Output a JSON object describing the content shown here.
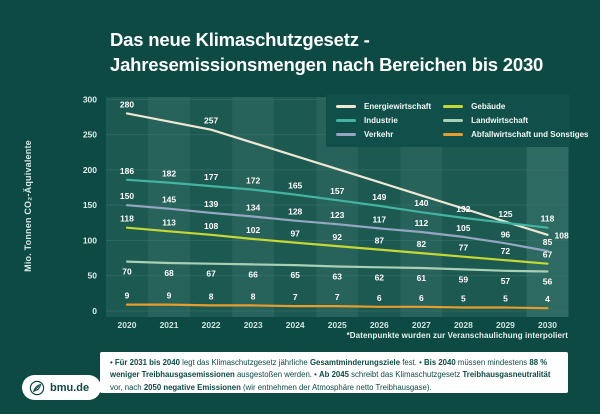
{
  "page": {
    "background": "#0d4a44"
  },
  "title": {
    "line1": "Das neue Klimaschutzgesetz -",
    "line2": "Jahresemissionsmengen nach Bereichen bis 2030"
  },
  "chart_data": {
    "type": "line",
    "x": [
      "2020",
      "2021",
      "2022",
      "2023",
      "2024",
      "2025",
      "2026",
      "2027",
      "2028",
      "2029",
      "2030"
    ],
    "ylabel": "Mio. Tonnen CO₂-Äquivalente",
    "yticks": [
      0,
      50,
      100,
      150,
      200,
      250,
      300
    ],
    "ylim": [
      0,
      300
    ],
    "grid": "horizontal",
    "legend_position": "top-right",
    "footnote": "*Datenpunkte wurden zur Veranschaulichung interpoliert",
    "series": [
      {
        "name": "Energiewirtschaft",
        "color": "#eee7d4",
        "values": [
          280,
          268.5,
          257,
          238.4,
          219.8,
          201.1,
          182.5,
          163.9,
          145.3,
          126.6,
          108
        ],
        "point_labels": [
          "280",
          null,
          "257",
          null,
          null,
          null,
          null,
          null,
          null,
          null,
          "108"
        ],
        "label_positions": {
          "10": "right"
        }
      },
      {
        "name": "Industrie",
        "color": "#43b3a2",
        "values": [
          186,
          182,
          177,
          172,
          165,
          157,
          149,
          140,
          132,
          125,
          118
        ],
        "point_labels": [
          "186",
          "182",
          "177",
          "172",
          "165",
          "157",
          "149",
          "140",
          "132",
          "125",
          "118"
        ]
      },
      {
        "name": "Verkehr",
        "color": "#95a5c4",
        "values": [
          150,
          145,
          139,
          134,
          128,
          123,
          117,
          112,
          105,
          96,
          85
        ],
        "point_labels": [
          "150",
          "145",
          "139",
          "134",
          "128",
          "123",
          "117",
          "112",
          "105",
          "96",
          "85"
        ]
      },
      {
        "name": "Gebäude",
        "color": "#c6d832",
        "values": [
          118,
          113,
          108,
          102,
          97,
          92,
          87,
          82,
          77,
          72,
          67
        ],
        "point_labels": [
          "118",
          "113",
          "108",
          "102",
          "97",
          "92",
          "87",
          "82",
          "77",
          "72",
          "67"
        ]
      },
      {
        "name": "Landwirtschaft",
        "color": "#a9cfb5",
        "values": [
          70,
          68,
          67,
          66,
          65,
          63,
          62,
          61,
          59,
          57,
          56
        ],
        "point_labels": [
          "70",
          "68",
          "67",
          "66",
          "65",
          "63",
          "62",
          "61",
          "59",
          "57",
          "56"
        ],
        "label_side": "below"
      },
      {
        "name": "Abfallwirtschaft und Sonstiges",
        "color": "#e69d2d",
        "values": [
          9,
          9,
          8,
          8,
          7,
          7,
          6,
          6,
          5,
          5,
          4
        ],
        "point_labels": [
          "9",
          "9",
          "8",
          "8",
          "7",
          "7",
          "6",
          "6",
          "5",
          "5",
          "4"
        ]
      }
    ],
    "legend_columns": [
      [
        0,
        1,
        2
      ],
      [
        3,
        4,
        5
      ]
    ]
  },
  "colors": {
    "band_dark": "#1c5951",
    "band_light": "#27635b",
    "band_highlight": "#2d6a61",
    "gridline": "#3a746b",
    "ytick_text": "#ddeeea",
    "xtick_text": "#cfe4df",
    "point_label_text": "#ffffff"
  },
  "infobox": {
    "segments": [
      {
        "text": "• ",
        "bold": false
      },
      {
        "text": "Für 2031 bis 2040",
        "bold": true
      },
      {
        "text": " legt das Klimaschutzgesetz jährliche ",
        "bold": false
      },
      {
        "text": "Gesamtminderungsziele",
        "bold": true
      },
      {
        "text": " fest. • ",
        "bold": false
      },
      {
        "text": "Bis 2040",
        "bold": true
      },
      {
        "text": " müssen mindestens ",
        "bold": false
      },
      {
        "text": "88 % weniger Treibhausgasemissionen",
        "bold": true
      },
      {
        "text": " ausgestoßen werden. • ",
        "bold": false
      },
      {
        "text": "Ab 2045",
        "bold": true
      },
      {
        "text": " schreibt das Klimaschutzgesetz ",
        "bold": false
      },
      {
        "text": "Treibhausgasneutralität",
        "bold": true
      },
      {
        "text": " vor, nach ",
        "bold": false
      },
      {
        "text": "2050 negative Emissionen",
        "bold": true
      },
      {
        "text": " (wir entnehmen der Atmosphäre netto Treibhausgase).",
        "bold": false
      }
    ]
  },
  "badge": {
    "label": "bmu.de",
    "icon": "leaf-icon"
  }
}
